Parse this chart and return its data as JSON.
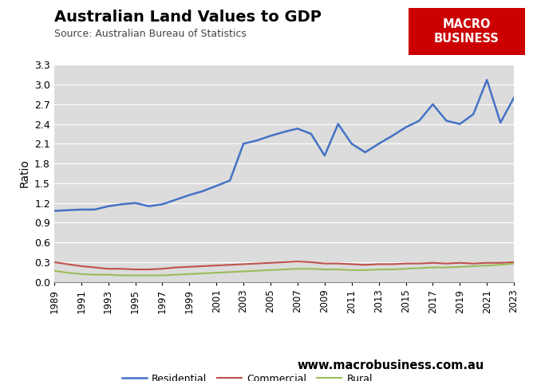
{
  "title": "Australian Land Values to GDP",
  "subtitle": "Source: Australian Bureau of Statistics",
  "ylabel": "Ratio",
  "website": "www.macrobusiness.com.au",
  "years": [
    1989,
    1990,
    1991,
    1992,
    1993,
    1994,
    1995,
    1996,
    1997,
    1998,
    1999,
    2000,
    2001,
    2002,
    2003,
    2004,
    2005,
    2006,
    2007,
    2008,
    2009,
    2010,
    2011,
    2012,
    2013,
    2014,
    2015,
    2016,
    2017,
    2018,
    2019,
    2020,
    2021,
    2022,
    2023
  ],
  "residential": [
    1.08,
    1.09,
    1.1,
    1.1,
    1.15,
    1.18,
    1.2,
    1.15,
    1.18,
    1.25,
    1.32,
    1.38,
    1.46,
    1.54,
    2.1,
    2.15,
    2.22,
    2.28,
    2.33,
    2.25,
    1.92,
    2.4,
    2.1,
    1.97,
    2.1,
    2.22,
    2.35,
    2.45,
    2.7,
    2.45,
    2.4,
    2.55,
    3.07,
    2.42,
    2.8
  ],
  "commercial": [
    0.3,
    0.27,
    0.24,
    0.22,
    0.2,
    0.2,
    0.19,
    0.19,
    0.2,
    0.22,
    0.23,
    0.24,
    0.25,
    0.26,
    0.27,
    0.28,
    0.29,
    0.3,
    0.31,
    0.3,
    0.28,
    0.28,
    0.27,
    0.26,
    0.27,
    0.27,
    0.28,
    0.28,
    0.29,
    0.28,
    0.29,
    0.28,
    0.29,
    0.29,
    0.3
  ],
  "rural": [
    0.17,
    0.14,
    0.12,
    0.11,
    0.11,
    0.1,
    0.1,
    0.1,
    0.1,
    0.11,
    0.12,
    0.13,
    0.14,
    0.15,
    0.16,
    0.17,
    0.18,
    0.19,
    0.2,
    0.2,
    0.19,
    0.19,
    0.18,
    0.18,
    0.19,
    0.19,
    0.2,
    0.21,
    0.22,
    0.22,
    0.23,
    0.24,
    0.25,
    0.26,
    0.28
  ],
  "residential_color": "#4472C4",
  "commercial_color": "#C0504D",
  "rural_color": "#9BBB59",
  "background_color": "#DCDCDC",
  "ylim": [
    0,
    3.3
  ],
  "yticks": [
    0.0,
    0.3,
    0.6,
    0.9,
    1.2,
    1.5,
    1.8,
    2.1,
    2.4,
    2.7,
    3.0,
    3.3
  ],
  "xlim": [
    1989,
    2023
  ],
  "xtick_start": 1989,
  "xtick_end": 2024,
  "xtick_step": 2,
  "macro_red": "#CC0000",
  "macro_text": "MACRO\nBUSINESS",
  "figsize": [
    6.78,
    4.78
  ],
  "dpi": 100
}
